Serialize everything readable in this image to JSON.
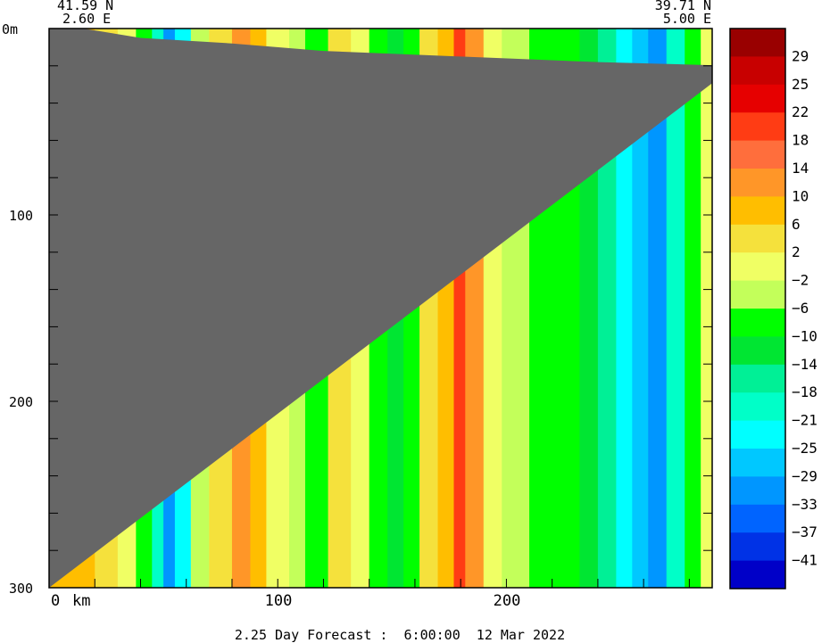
{
  "chart_data": {
    "type": "heatmap",
    "title": "",
    "endpoints": {
      "left": {
        "lat": "41.59 N",
        "lon": "2.60 E"
      },
      "right": {
        "lat": "39.71 N",
        "lon": "5.00 E"
      }
    },
    "x_axis": {
      "unit_label": "km",
      "ticks": [
        "0",
        "100",
        "200"
      ],
      "range": [
        0,
        290
      ]
    },
    "y_axis": {
      "ticks": [
        "0m",
        "100",
        "200",
        "300"
      ],
      "range": [
        0,
        300
      ],
      "inverted": true
    },
    "footer": "2.25 Day Forecast :  6:00:00  12 Mar 2022",
    "colorbar": {
      "labels": [
        "29",
        "25",
        "22",
        "18",
        "14",
        "10",
        "6",
        "2",
        "-2",
        "-6",
        "-10",
        "-14",
        "-18",
        "-21",
        "-25",
        "-29",
        "-33",
        "-37",
        "-41"
      ],
      "colors": [
        "#990000",
        "#c80000",
        "#e60000",
        "#ff3c14",
        "#ff6e3c",
        "#ff9628",
        "#ffbe00",
        "#f5e13c",
        "#f0ff64",
        "#c3ff5a",
        "#00ff00",
        "#00e632",
        "#00f096",
        "#00ffc8",
        "#00ffff",
        "#00c8ff",
        "#0096ff",
        "#0064ff",
        "#0032e6",
        "#0000c8"
      ]
    },
    "bands": [
      {
        "x": 0,
        "value": 6
      },
      {
        "x": 10,
        "value": 6
      },
      {
        "x": 20,
        "value": 2
      },
      {
        "x": 30,
        "value": -2
      },
      {
        "x": 38,
        "value": -10
      },
      {
        "x": 45,
        "value": -21
      },
      {
        "x": 50,
        "value": -33
      },
      {
        "x": 55,
        "value": -25
      },
      {
        "x": 62,
        "value": -6
      },
      {
        "x": 70,
        "value": 2
      },
      {
        "x": 80,
        "value": 10
      },
      {
        "x": 88,
        "value": 6
      },
      {
        "x": 95,
        "value": -2
      },
      {
        "x": 105,
        "value": -6
      },
      {
        "x": 112,
        "value": -10
      },
      {
        "x": 122,
        "value": 2
      },
      {
        "x": 132,
        "value": -2
      },
      {
        "x": 140,
        "value": -10
      },
      {
        "x": 148,
        "value": -14
      },
      {
        "x": 155,
        "value": -10
      },
      {
        "x": 162,
        "value": 2
      },
      {
        "x": 170,
        "value": 6
      },
      {
        "x": 177,
        "value": 18
      },
      {
        "x": 182,
        "value": 10
      },
      {
        "x": 190,
        "value": -2
      },
      {
        "x": 198,
        "value": -6
      },
      {
        "x": 210,
        "value": -10
      },
      {
        "x": 222,
        "value": -10
      },
      {
        "x": 232,
        "value": -14
      },
      {
        "x": 240,
        "value": -18
      },
      {
        "x": 248,
        "value": -25
      },
      {
        "x": 255,
        "value": -29
      },
      {
        "x": 262,
        "value": -33
      },
      {
        "x": 270,
        "value": -21
      },
      {
        "x": 278,
        "value": -10
      },
      {
        "x": 285,
        "value": -2
      },
      {
        "x": 290,
        "value": 2
      }
    ],
    "land_mask": {
      "color": "#666666",
      "boundary": [
        [
          0,
          15
        ],
        [
          5,
          40
        ],
        [
          8,
          80
        ],
        [
          12,
          120
        ],
        [
          15,
          180
        ],
        [
          18,
          240
        ],
        [
          20,
          300
        ]
      ]
    }
  }
}
